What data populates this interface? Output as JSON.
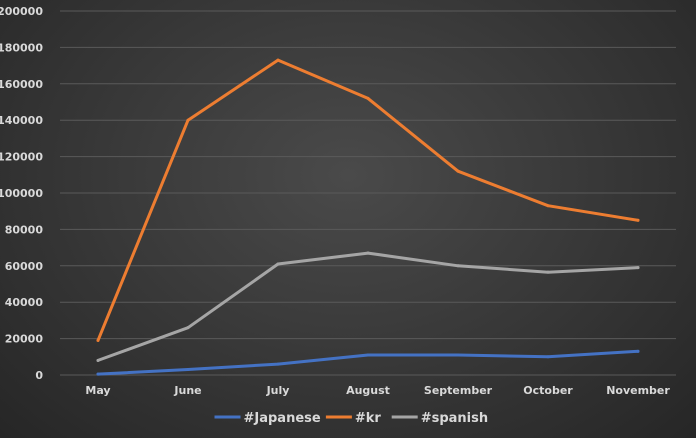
{
  "chart_data": {
    "type": "line",
    "title": "",
    "xlabel": "",
    "ylabel": "",
    "categories": [
      "May",
      "June",
      "July",
      "August",
      "September",
      "October",
      "November"
    ],
    "ylim": [
      0,
      200000
    ],
    "yticks": [
      0,
      20000,
      40000,
      60000,
      80000,
      100000,
      120000,
      140000,
      160000,
      180000,
      200000
    ],
    "ytick_labels": [
      "0",
      "20000",
      "40000",
      "60000",
      "80000",
      "100000",
      "120000",
      "140000",
      "160000",
      "180000",
      "200000"
    ],
    "grid": true,
    "legend_position": "bottom",
    "series": [
      {
        "name": "#Japanese",
        "color": "#4472c4",
        "values": [
          500,
          3000,
          6000,
          11000,
          11000,
          10000,
          13000
        ]
      },
      {
        "name": "#kr",
        "color": "#ed7d31",
        "values": [
          19000,
          140000,
          173000,
          152000,
          112000,
          93000,
          85000
        ]
      },
      {
        "name": "#spanish",
        "color": "#a5a5a5",
        "values": [
          8000,
          26000,
          61000,
          67000,
          60000,
          56500,
          59000
        ]
      }
    ]
  }
}
